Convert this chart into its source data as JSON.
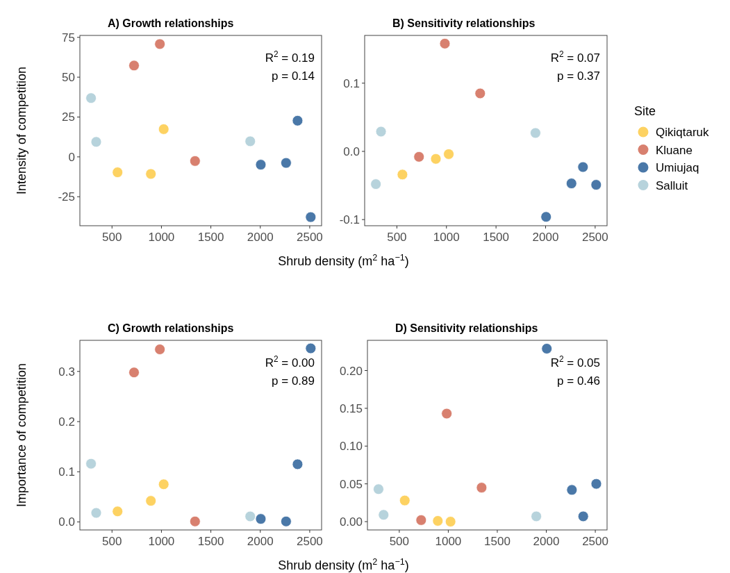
{
  "chart_data": [
    {
      "type": "scatter",
      "title": "A) Growth relationships",
      "xlabel": "Shrub density (m$^{2}$ ha$^{−1}$)",
      "ylabel": "Intensity of competition",
      "legend_title": "Site",
      "legend": "right",
      "marker": "circle",
      "grid": false,
      "xlim": [
        175,
        2620
      ],
      "xticks": [
        500,
        1000,
        1500,
        2000,
        2500
      ],
      "ylim": [
        -43.2,
        76.2
      ],
      "yticks": [
        -25,
        0,
        25,
        50,
        75
      ],
      "annotations": [
        "R$^{2}$ = 0.19",
        "p  = 0.14"
      ],
      "series": [
        {
          "name": "Qikiqtaruk",
          "color": "#fdd262",
          "x": [
            556,
            893,
            1023
          ],
          "values": [
            -9.7,
            -10.7,
            17.4
          ]
        },
        {
          "name": "Kluane",
          "color": "#d8806f",
          "x": [
            723,
            984,
            1340
          ],
          "values": [
            57.3,
            70.8,
            -2.6
          ]
        },
        {
          "name": "Umiujaq",
          "color": "#4a78a8",
          "x": [
            2005,
            2261,
            2377,
            2510
          ],
          "values": [
            -4.9,
            -3.8,
            22.7,
            -37.8
          ]
        },
        {
          "name": "Salluit",
          "color": "#b7d3dc",
          "x": [
            288,
            340,
            1898
          ],
          "values": [
            36.9,
            9.4,
            9.8
          ]
        }
      ]
    },
    {
      "type": "scatter",
      "title": "B) Sensitivity relationships",
      "marker": "circle",
      "grid": false,
      "xlim": [
        175,
        2620
      ],
      "xticks": [
        500,
        1000,
        1500,
        2000,
        2500
      ],
      "ylim": [
        -0.109,
        0.17
      ],
      "yticks": [
        -0.1,
        {
          "value": 0,
          "label": "0.0"
        },
        0.1
      ],
      "annotations": [
        "R$^{2}$ = 0.07",
        "p  = 0.37"
      ],
      "series": [
        {
          "color": "#fdd262",
          "x": [
            556,
            893,
            1023
          ],
          "values": [
            -0.034,
            -0.011,
            -0.004
          ]
        },
        {
          "color": "#d8806f",
          "x": [
            723,
            984,
            1340
          ],
          "values": [
            -0.008,
            0.158,
            0.085
          ]
        },
        {
          "color": "#4a78a8",
          "x": [
            2005,
            2261,
            2377,
            2510
          ],
          "values": [
            -0.096,
            -0.047,
            -0.023,
            -0.049
          ]
        },
        {
          "color": "#b7d3dc",
          "x": [
            288,
            340,
            1898
          ],
          "values": [
            -0.048,
            0.029,
            0.027
          ]
        }
      ]
    },
    {
      "type": "scatter",
      "title": "C) Growth relationships",
      "xlabel": "Shrub density (m$^{2}$ ha$^{−1}$)",
      "ylabel": "Importance of competition",
      "marker": "circle",
      "grid": false,
      "xlim": [
        175,
        2620
      ],
      "xticks": [
        500,
        1000,
        1500,
        2000,
        2500
      ],
      "ylim": [
        -0.016,
        0.362
      ],
      "yticks": [
        {
          "value": 0,
          "label": "0.0"
        },
        0.1,
        0.2,
        0.3
      ],
      "annotations": [
        "R$^{2}$ = 0.00",
        "p  = 0.89"
      ],
      "series": [
        {
          "color": "#fdd262",
          "x": [
            556,
            893,
            1023
          ],
          "values": [
            0.021,
            0.042,
            0.075
          ]
        },
        {
          "color": "#d8806f",
          "x": [
            723,
            984,
            1340
          ],
          "values": [
            0.298,
            0.344,
            0.001
          ]
        },
        {
          "color": "#4a78a8",
          "x": [
            2005,
            2261,
            2377,
            2510
          ],
          "values": [
            0.006,
            0.001,
            0.115,
            0.346
          ]
        },
        {
          "color": "#b7d3dc",
          "x": [
            288,
            340,
            1898
          ],
          "values": [
            0.116,
            0.018,
            0.011
          ]
        }
      ]
    },
    {
      "type": "scatter",
      "title": "D) Sensitivity relationships",
      "marker": "circle",
      "grid": false,
      "xlim": [
        175,
        2620
      ],
      "xticks": [
        500,
        1000,
        1500,
        2000,
        2500
      ],
      "ylim": [
        -0.011,
        0.24
      ],
      "yticks": [
        {
          "value": 0,
          "label": "0.00"
        },
        {
          "value": 0.05,
          "label": "0.05"
        },
        {
          "value": 0.1,
          "label": "0.10"
        },
        {
          "value": 0.15,
          "label": "0.15"
        },
        {
          "value": 0.2,
          "label": "0.20"
        }
      ],
      "annotations": [
        "R$^{2}$ = 0.05",
        "p  = 0.46"
      ],
      "series": [
        {
          "color": "#fdd262",
          "x": [
            556,
            893,
            1023
          ],
          "values": [
            0.028,
            0.001,
            0.0
          ]
        },
        {
          "color": "#d8806f",
          "x": [
            723,
            984,
            1340
          ],
          "values": [
            0.002,
            0.143,
            0.045
          ]
        },
        {
          "color": "#4a78a8",
          "x": [
            2005,
            2261,
            2377,
            2510
          ],
          "values": [
            0.229,
            0.042,
            0.007,
            0.05
          ]
        },
        {
          "color": "#b7d3dc",
          "x": [
            288,
            340,
            1898
          ],
          "values": [
            0.043,
            0.009,
            0.007
          ]
        }
      ]
    }
  ]
}
